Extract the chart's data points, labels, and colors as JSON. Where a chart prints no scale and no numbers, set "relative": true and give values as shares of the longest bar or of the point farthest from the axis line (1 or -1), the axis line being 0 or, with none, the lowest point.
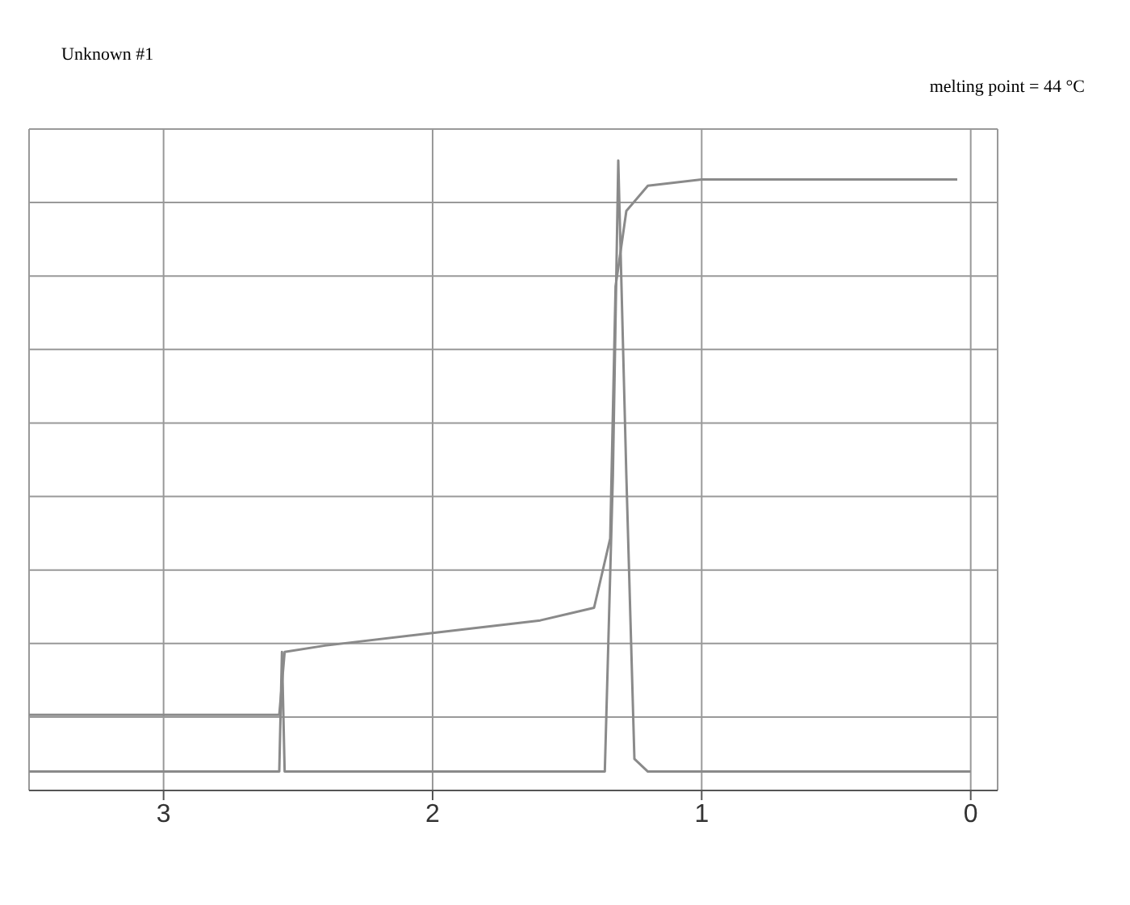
{
  "chart_data": {
    "type": "line",
    "title": "Unknown #1",
    "annotations": [
      "melting point = 44 °C"
    ],
    "relative": true,
    "xlim": [
      3.5,
      -0.1
    ],
    "xticks": [
      3,
      2,
      1,
      0
    ],
    "grid": true,
    "marker": "none",
    "line_style": "solid",
    "series": [
      {
        "color": "#8a8a8a",
        "x": [
          3.5,
          2.6,
          2.57,
          2.56,
          2.55,
          1.36,
          1.33,
          1.31,
          1.28,
          1.25,
          1.2,
          0
        ],
        "values": [
          0.03,
          0.03,
          0.03,
          0.22,
          0.03,
          0.03,
          0.5,
          1.0,
          0.5,
          0.05,
          0.03,
          0.03
        ]
      },
      {
        "color": "#8a8a8a",
        "x": [
          3.5,
          2.57,
          2.55,
          2.4,
          2.0,
          1.6,
          1.4,
          1.34,
          1.32,
          1.28,
          1.2,
          1.0,
          0.05
        ],
        "values": [
          0.12,
          0.12,
          0.22,
          0.23,
          0.25,
          0.27,
          0.29,
          0.4,
          0.8,
          0.92,
          0.96,
          0.97,
          0.97
        ]
      }
    ]
  }
}
